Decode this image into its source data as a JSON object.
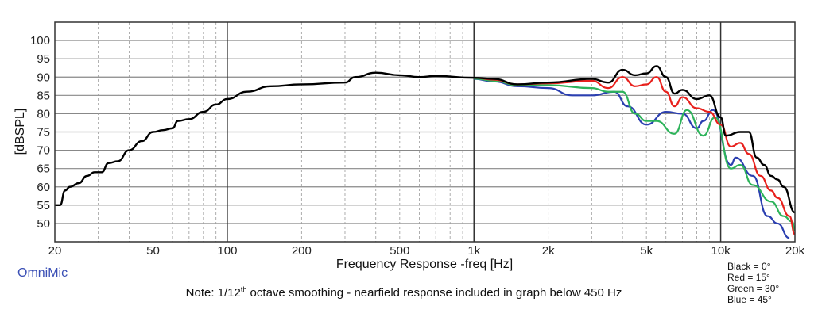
{
  "chart_data": {
    "type": "line",
    "title": "",
    "xlabel": "Frequency Response -freq [Hz]",
    "ylabel": "[dBSPL]",
    "xscale": "log",
    "xlim": [
      20,
      20000
    ],
    "ylim": [
      45,
      105
    ],
    "grid": true,
    "xticks": [
      20,
      50,
      100,
      200,
      500,
      1000,
      2000,
      5000,
      10000,
      20000
    ],
    "xtick_labels": [
      "20",
      "50",
      "100",
      "200",
      "500",
      "1k",
      "2k",
      "5k",
      "10k",
      "20k"
    ],
    "yticks": [
      50,
      55,
      60,
      65,
      70,
      75,
      80,
      85,
      90,
      95,
      100
    ],
    "series": [
      {
        "name": "Black = 0°",
        "color": "#000000",
        "x": [
          20,
          21,
          22,
          23,
          25,
          27,
          29,
          31,
          33,
          36,
          40,
          45,
          50,
          55,
          60,
          63,
          70,
          80,
          90,
          100,
          120,
          150,
          200,
          300,
          330,
          400,
          500,
          600,
          700,
          1000,
          1200,
          1500,
          2000,
          3000,
          3500,
          4000,
          4500,
          5000,
          5500,
          6000,
          6500,
          7000,
          8000,
          9000,
          10000,
          10500,
          12000,
          13000,
          14000,
          15000,
          16000,
          17000,
          18000,
          20000
        ],
        "y": [
          55,
          55,
          59,
          60,
          61,
          63,
          64,
          64,
          66.5,
          67,
          70,
          72.5,
          75,
          75.5,
          76,
          78,
          78.5,
          80.5,
          82.5,
          84,
          86,
          87.5,
          88,
          88.5,
          90,
          91.2,
          90.5,
          90,
          90.3,
          89.8,
          89.5,
          88,
          88.5,
          89.5,
          88.5,
          92,
          90.5,
          91,
          93,
          90,
          85.5,
          86.5,
          84,
          85,
          79,
          74,
          75,
          75,
          68,
          66,
          63,
          62,
          60,
          53
        ]
      },
      {
        "name": "Red = 15°",
        "color": "#e8211d",
        "x": [
          1000,
          1200,
          1500,
          2000,
          3000,
          3500,
          4000,
          4500,
          5000,
          5500,
          6000,
          6500,
          7000,
          8000,
          9000,
          10000,
          11000,
          12000,
          13000,
          14500,
          16000,
          17000,
          19000,
          20000
        ],
        "y": [
          89.8,
          89.3,
          88,
          88.3,
          89,
          87,
          90,
          87.5,
          88,
          90,
          86,
          82,
          84.5,
          81.5,
          80.5,
          77,
          71,
          72,
          69,
          63,
          59,
          57,
          52,
          47
        ]
      },
      {
        "name": "Green = 30°",
        "color": "#2db35a",
        "x": [
          1000,
          1200,
          1500,
          2000,
          3000,
          3500,
          4000,
          4500,
          5000,
          5500,
          6500,
          7300,
          8500,
          9500,
          11000,
          12000,
          13500,
          16000,
          18000,
          19500,
          20000
        ],
        "y": [
          89.6,
          89,
          87.8,
          87.8,
          87,
          86,
          86,
          80,
          78,
          78,
          74.5,
          81,
          74,
          79,
          65,
          66,
          60.5,
          56,
          52,
          50.5,
          48
        ]
      },
      {
        "name": "Blue = 45°",
        "color": "#2b3fb0",
        "x": [
          1000,
          1200,
          1500,
          2000,
          2500,
          3000,
          3700,
          4200,
          5000,
          6000,
          7000,
          8000,
          8500,
          9300,
          11000,
          11500,
          13500,
          15500,
          17000,
          19000
        ],
        "y": [
          89.5,
          88.8,
          87.5,
          87,
          85,
          85,
          86,
          82,
          77,
          80.5,
          80,
          76,
          78,
          81,
          66,
          68,
          63,
          52,
          50,
          46
        ]
      }
    ]
  },
  "brand": "OmniMic",
  "note": {
    "prefix": "Note: 1/12",
    "sup": "th",
    "suffix": " octave smoothing - nearfield response included in graph below 450 Hz"
  }
}
